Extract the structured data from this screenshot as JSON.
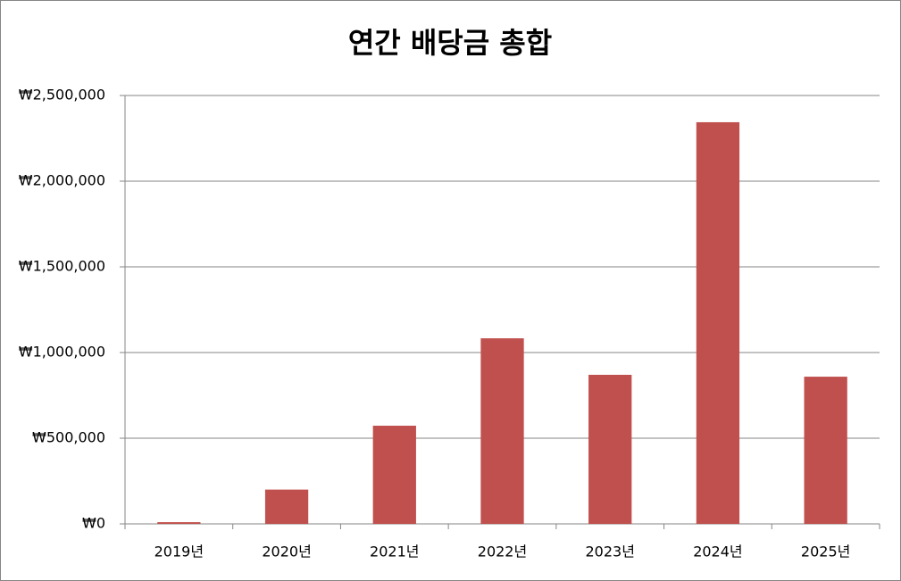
{
  "chart_data": {
    "type": "bar",
    "title": "연간 배당금 총합",
    "categories": [
      "2019년",
      "2020년",
      "2021년",
      "2022년",
      "2023년",
      "2024년",
      "2025년"
    ],
    "values": [
      10000,
      200000,
      573000,
      1083000,
      870000,
      2344000,
      859000
    ],
    "color": "#c0504d",
    "ylim": [
      0,
      2500000
    ],
    "yticks": [
      {
        "value": 0,
        "label": "₩0"
      },
      {
        "value": 500000,
        "label": "₩500,000"
      },
      {
        "value": 1000000,
        "label": "₩1,000,000"
      },
      {
        "value": 1500000,
        "label": "₩1,500,000"
      },
      {
        "value": 2000000,
        "label": "₩2,000,000"
      },
      {
        "value": 2500000,
        "label": "₩2,500,000"
      }
    ],
    "grid": true
  }
}
